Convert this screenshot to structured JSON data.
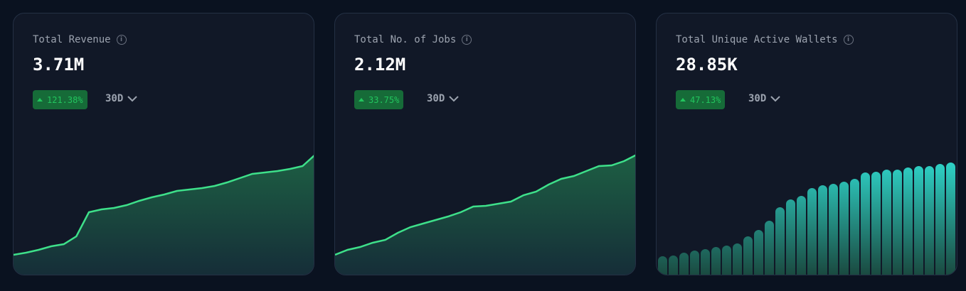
{
  "colors": {
    "background": "#0a1220",
    "card": "#111827",
    "line": "#3ee08a",
    "bar_top": "#2fd3c8",
    "bar_bottom": "#1a4a40",
    "badge_bg": "#166b38",
    "badge_text": "#22c55e"
  },
  "cards": [
    {
      "title": "Total Revenue",
      "icon": "info-icon",
      "value": "3.71M",
      "change": "121.38%",
      "change_icon": "triangle-up-icon",
      "period": "30D",
      "period_icon": "chevron-down-icon"
    },
    {
      "title": "Total No. of Jobs",
      "icon": "info-icon",
      "value": "2.12M",
      "change": "33.75%",
      "change_icon": "triangle-up-icon",
      "period": "30D",
      "period_icon": "chevron-down-icon"
    },
    {
      "title": "Total Unique Active Wallets",
      "icon": "info-icon",
      "value": "28.85K",
      "change": "47.13%",
      "change_icon": "triangle-up-icon",
      "period": "30D",
      "period_icon": "chevron-down-icon"
    }
  ],
  "chart_data": [
    {
      "type": "area",
      "values": [
        28,
        31,
        35,
        40,
        43,
        54,
        88,
        92,
        94,
        98,
        104,
        109,
        113,
        118,
        120,
        122,
        125,
        130,
        136,
        142,
        144,
        146,
        149,
        153,
        169
      ]
    },
    {
      "type": "area",
      "values": [
        28,
        35,
        39,
        45,
        49,
        59,
        67,
        72,
        77,
        82,
        88,
        96,
        97,
        100,
        103,
        112,
        117,
        127,
        135,
        139,
        146,
        153,
        154,
        160,
        169
      ]
    },
    {
      "type": "bar",
      "values": [
        26,
        27,
        31,
        34,
        36,
        39,
        41,
        44,
        54,
        63,
        76,
        95,
        106,
        111,
        122,
        126,
        128,
        131,
        135,
        144,
        145,
        148,
        148,
        151,
        153,
        153,
        156,
        158
      ]
    }
  ]
}
